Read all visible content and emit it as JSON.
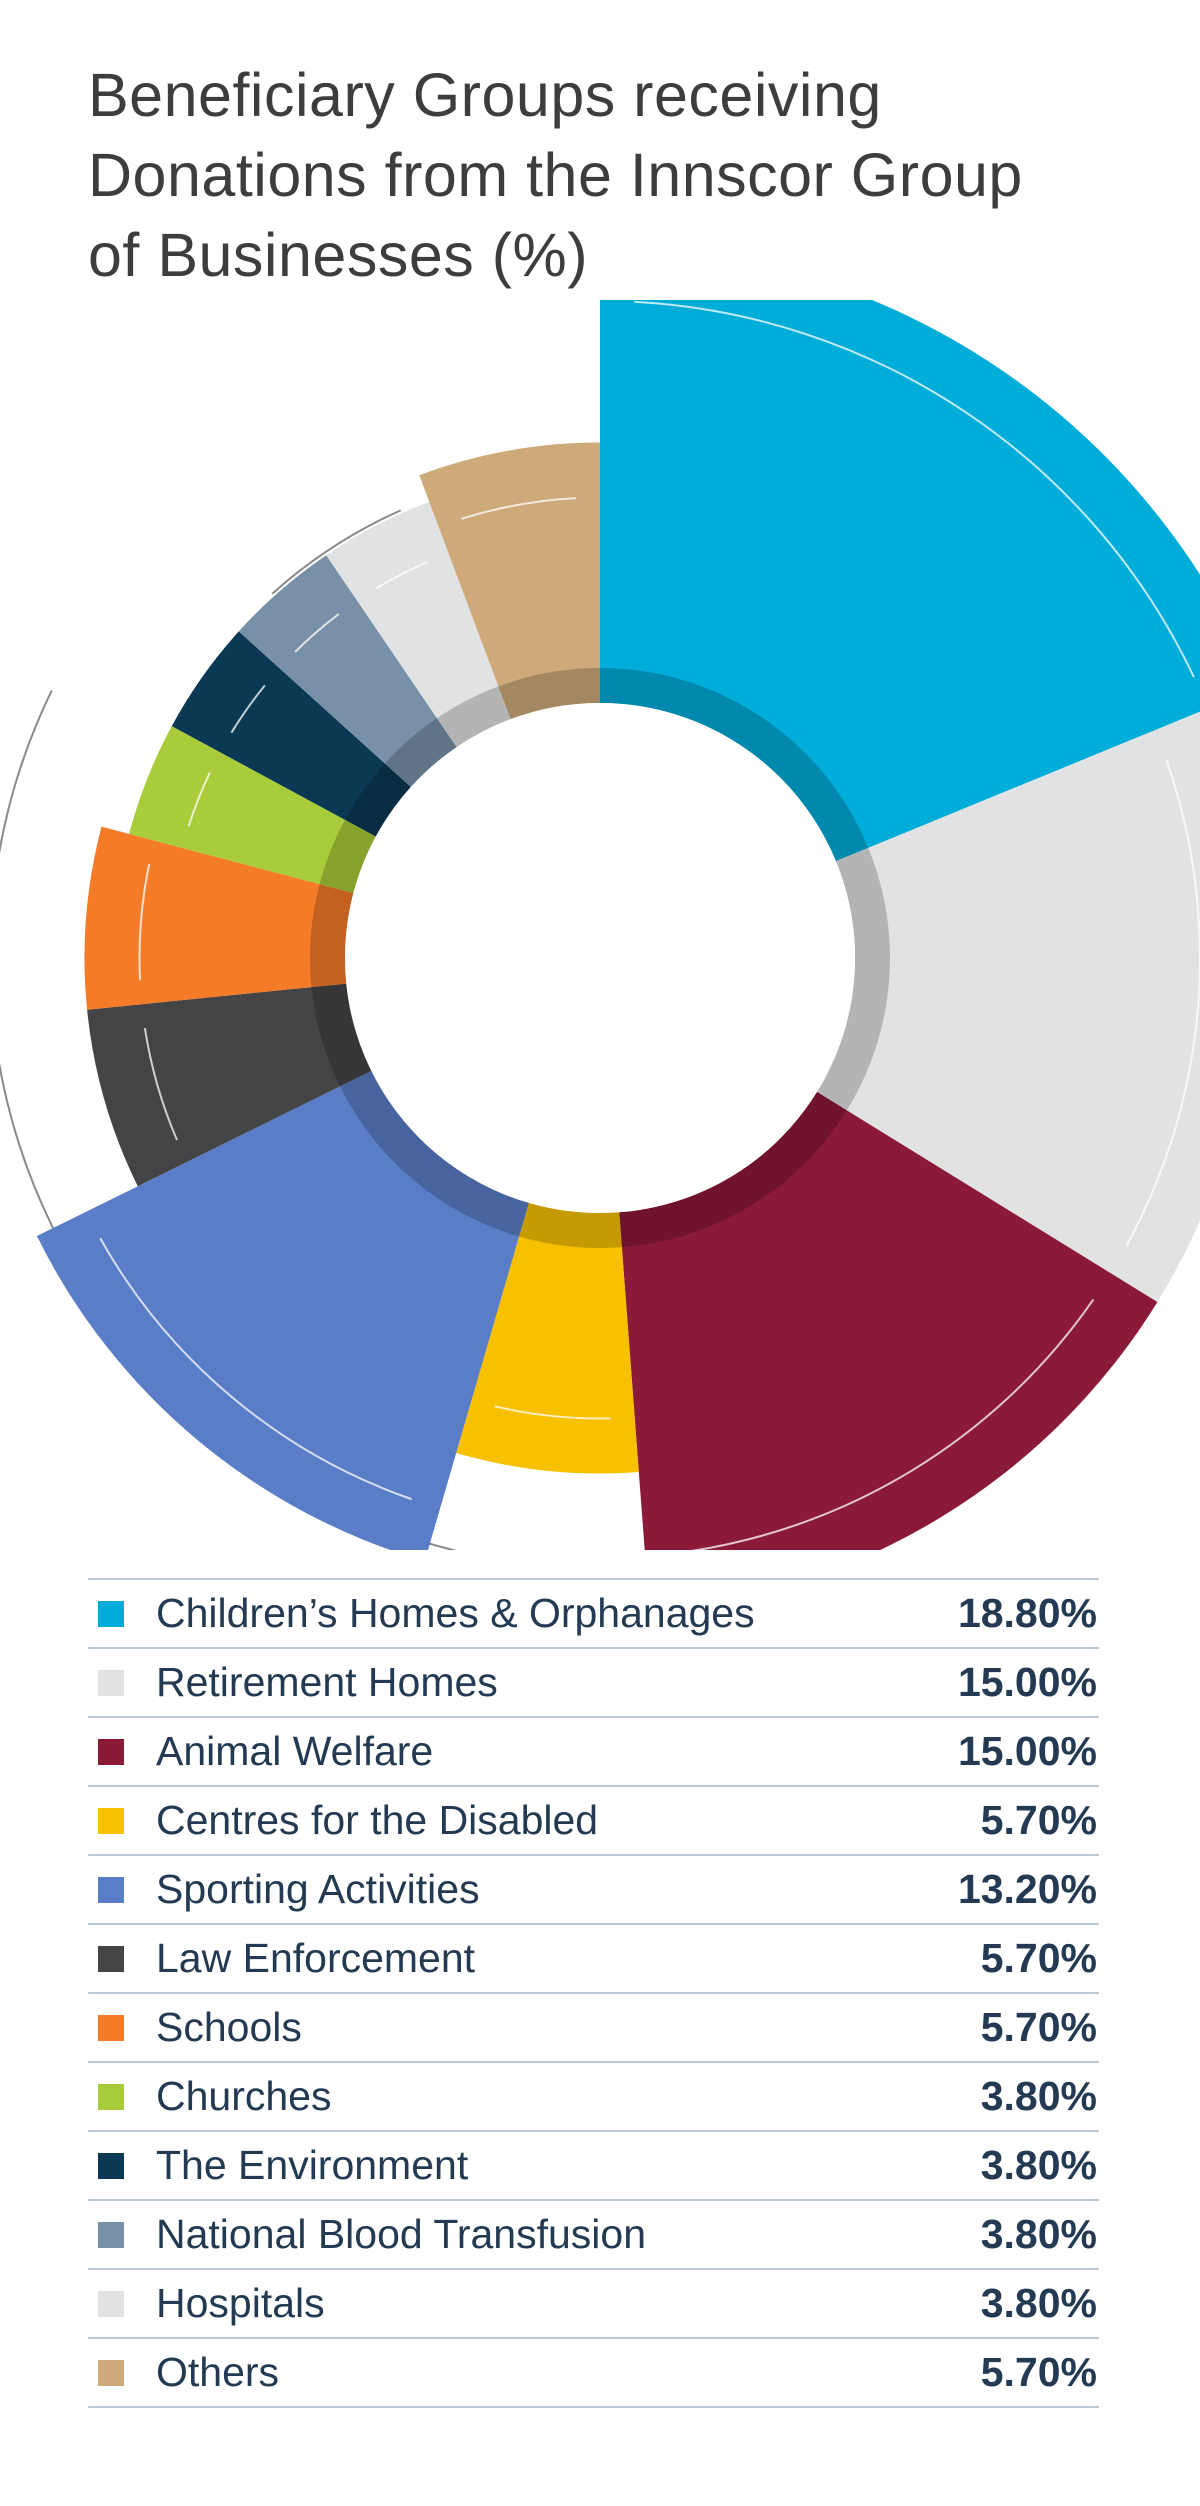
{
  "title_lines": [
    "Beneficiary Groups receiving",
    "Donations from the Innscor Group",
    "of Businesses (%)"
  ],
  "chart_data": {
    "type": "pie",
    "title": "Beneficiary Groups receiving Donations from the Innscor Group of Businesses (%)",
    "unit": "%",
    "categories": [
      "Children’s Homes & Orphanages",
      "Retirement Homes",
      "Animal Welfare",
      "Centres for the Disabled",
      "Sporting Activities",
      "Law Enforcement",
      "Schools",
      "Churches",
      "The Environment",
      "National Blood Transfusion",
      "Hospitals",
      "Others"
    ],
    "values": [
      18.8,
      15.0,
      15.0,
      5.7,
      13.2,
      5.7,
      5.7,
      3.8,
      3.8,
      3.8,
      3.8,
      5.7
    ],
    "value_labels": [
      "18.80%",
      "15.00%",
      "15.00%",
      "5.70%",
      "13.20%",
      "5.70%",
      "5.70%",
      "3.80%",
      "3.80%",
      "3.80%",
      "3.80%",
      "5.70%"
    ],
    "colors": [
      "#00acd8",
      "#e1e2e4",
      "#8b1a38",
      "#f7c100",
      "#5a7dc7",
      "#444446",
      "#f47b28",
      "#a8cc3a",
      "#0b3954",
      "#7891a9",
      "#e1e2e4",
      "#ceaa7b"
    ],
    "legend_placement": "bottom"
  }
}
